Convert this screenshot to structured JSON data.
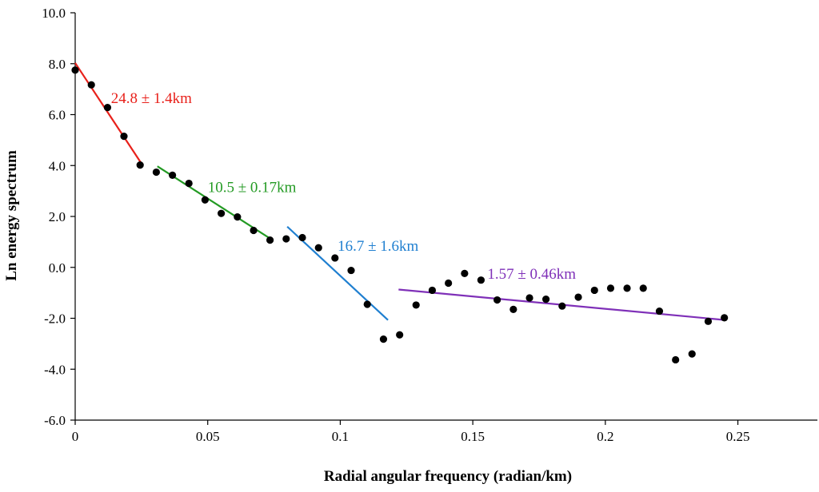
{
  "chart_data": {
    "type": "scatter",
    "xlabel": "Radial angular frequency (radian/km)",
    "ylabel": "Ln energy spectrum",
    "xlim": [
      0,
      0.28
    ],
    "ylim": [
      -6.0,
      10.0
    ],
    "x_ticks": [
      0,
      0.05,
      0.1,
      0.15,
      0.2,
      0.25
    ],
    "x_tick_labels": [
      "0",
      "0.05",
      "0.1",
      "0.15",
      "0.2",
      "0.25"
    ],
    "y_ticks": [
      10,
      8,
      6,
      4,
      2,
      0,
      -2,
      -4,
      -6
    ],
    "y_tick_labels": [
      "10.0",
      "8.0",
      "6.0",
      "4.0",
      "2.0",
      "0.0",
      "-2.0",
      "-4.0",
      "-6.0"
    ],
    "grid": false,
    "points": [
      {
        "x": 0.0,
        "y": 7.75
      },
      {
        "x": 0.0061,
        "y": 7.17
      },
      {
        "x": 0.0122,
        "y": 6.28
      },
      {
        "x": 0.0184,
        "y": 5.15
      },
      {
        "x": 0.0245,
        "y": 4.02
      },
      {
        "x": 0.0306,
        "y": 3.74
      },
      {
        "x": 0.0367,
        "y": 3.62
      },
      {
        "x": 0.0429,
        "y": 3.3
      },
      {
        "x": 0.049,
        "y": 2.65
      },
      {
        "x": 0.0551,
        "y": 2.12
      },
      {
        "x": 0.0612,
        "y": 1.98
      },
      {
        "x": 0.0673,
        "y": 1.45
      },
      {
        "x": 0.0735,
        "y": 1.07
      },
      {
        "x": 0.0796,
        "y": 1.12
      },
      {
        "x": 0.0857,
        "y": 1.17
      },
      {
        "x": 0.0918,
        "y": 0.77
      },
      {
        "x": 0.098,
        "y": 0.37
      },
      {
        "x": 0.1041,
        "y": -0.12
      },
      {
        "x": 0.1102,
        "y": -1.45
      },
      {
        "x": 0.1163,
        "y": -2.82
      },
      {
        "x": 0.1224,
        "y": -2.65
      },
      {
        "x": 0.1286,
        "y": -1.48
      },
      {
        "x": 0.1347,
        "y": -0.9
      },
      {
        "x": 0.1408,
        "y": -0.62
      },
      {
        "x": 0.1469,
        "y": -0.24
      },
      {
        "x": 0.1531,
        "y": -0.5
      },
      {
        "x": 0.1592,
        "y": -1.28
      },
      {
        "x": 0.1653,
        "y": -1.65
      },
      {
        "x": 0.1714,
        "y": -1.2
      },
      {
        "x": 0.1776,
        "y": -1.25
      },
      {
        "x": 0.1837,
        "y": -1.52
      },
      {
        "x": 0.1898,
        "y": -1.17
      },
      {
        "x": 0.1959,
        "y": -0.9
      },
      {
        "x": 0.202,
        "y": -0.82
      },
      {
        "x": 0.2082,
        "y": -0.82
      },
      {
        "x": 0.2143,
        "y": -0.82
      },
      {
        "x": 0.2204,
        "y": -1.72
      },
      {
        "x": 0.2265,
        "y": -3.63
      },
      {
        "x": 0.2327,
        "y": -3.4
      },
      {
        "x": 0.2388,
        "y": -2.12
      },
      {
        "x": 0.2449,
        "y": -1.98
      }
    ],
    "fit_lines": [
      {
        "label": "24.8 ± 1.4km",
        "color": "#e8211b",
        "x0": 0.0,
        "y0": 8.03,
        "x1": 0.0255,
        "y1": 4.0,
        "label_at": [
          0.0135,
          6.45
        ]
      },
      {
        "label": "10.5 ± 0.17km",
        "color": "#239a23",
        "x0": 0.031,
        "y0": 3.97,
        "x1": 0.0745,
        "y1": 1.07,
        "label_at": [
          0.05,
          2.95
        ]
      },
      {
        "label": "16.7 ± 1.6km",
        "color": "#1f7fd0",
        "x0": 0.08,
        "y0": 1.6,
        "x1": 0.118,
        "y1": -2.07,
        "label_at": [
          0.099,
          0.65
        ]
      },
      {
        "label": "1.57 ± 0.46km",
        "color": "#7f30b8",
        "x0": 0.122,
        "y0": -0.87,
        "x1": 0.2455,
        "y1": -2.07,
        "label_at": [
          0.1555,
          -0.45
        ]
      }
    ]
  }
}
